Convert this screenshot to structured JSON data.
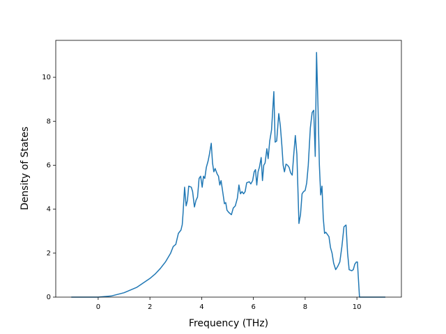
{
  "chart_data": {
    "type": "line",
    "xlabel": "Frequency (THz)",
    "ylabel": "Density of States",
    "x": [
      -1.04,
      -0.5,
      0,
      0.5,
      1.0,
      1.5,
      2.0,
      2.2,
      2.4,
      2.6,
      2.8,
      2.9,
      3.0,
      3.1,
      3.2,
      3.25,
      3.28,
      3.34,
      3.4,
      3.45,
      3.5,
      3.6,
      3.65,
      3.72,
      3.78,
      3.84,
      3.9,
      3.96,
      4.02,
      4.07,
      4.12,
      4.18,
      4.25,
      4.3,
      4.37,
      4.42,
      4.47,
      4.52,
      4.6,
      4.65,
      4.7,
      4.75,
      4.8,
      4.88,
      4.93,
      4.98,
      5.05,
      5.15,
      5.22,
      5.3,
      5.38,
      5.44,
      5.5,
      5.56,
      5.62,
      5.68,
      5.74,
      5.84,
      5.9,
      5.97,
      6.03,
      6.08,
      6.13,
      6.18,
      6.23,
      6.3,
      6.35,
      6.4,
      6.45,
      6.52,
      6.57,
      6.63,
      6.7,
      6.79,
      6.84,
      6.9,
      6.98,
      7.04,
      7.1,
      7.15,
      7.2,
      7.26,
      7.32,
      7.38,
      7.44,
      7.5,
      7.56,
      7.62,
      7.68,
      7.76,
      7.82,
      7.88,
      7.94,
      8.0,
      8.06,
      8.12,
      8.2,
      8.27,
      8.33,
      8.39,
      8.44,
      8.5,
      8.55,
      8.6,
      8.65,
      8.7,
      8.75,
      8.8,
      8.86,
      8.92,
      8.98,
      9.04,
      9.1,
      9.18,
      9.26,
      9.34,
      9.42,
      9.5,
      9.58,
      9.64,
      9.7,
      9.8,
      9.86,
      9.92,
      9.98,
      10.02,
      10.1,
      11.1
    ],
    "values": [
      0,
      0,
      0,
      0.05,
      0.2,
      0.45,
      0.85,
      1.05,
      1.3,
      1.6,
      2.0,
      2.3,
      2.4,
      2.9,
      3.05,
      3.3,
      3.8,
      5.0,
      4.15,
      4.4,
      5.05,
      5.0,
      4.8,
      4.1,
      4.4,
      4.55,
      5.4,
      5.5,
      5.0,
      5.5,
      5.4,
      5.9,
      6.2,
      6.5,
      7.0,
      6.1,
      5.7,
      5.85,
      5.6,
      5.5,
      5.1,
      5.3,
      4.9,
      4.25,
      4.3,
      3.95,
      3.85,
      3.75,
      4.05,
      4.15,
      4.5,
      5.1,
      4.7,
      4.8,
      4.7,
      4.8,
      5.2,
      5.25,
      5.15,
      5.3,
      5.7,
      5.8,
      5.1,
      5.7,
      5.9,
      6.35,
      5.3,
      6.0,
      6.1,
      6.75,
      6.3,
      7.1,
      7.6,
      9.35,
      7.05,
      7.1,
      8.35,
      7.8,
      6.9,
      6.0,
      5.7,
      6.05,
      6.0,
      5.9,
      5.65,
      5.55,
      6.5,
      7.35,
      6.5,
      3.35,
      3.75,
      4.7,
      4.8,
      4.85,
      5.2,
      6.0,
      7.7,
      8.4,
      8.5,
      6.4,
      11.13,
      8.5,
      6.0,
      4.65,
      5.05,
      3.6,
      2.9,
      2.95,
      2.85,
      2.75,
      2.25,
      2.0,
      1.55,
      1.25,
      1.4,
      1.6,
      2.3,
      3.2,
      3.28,
      2.0,
      1.25,
      1.2,
      1.25,
      1.5,
      1.6,
      1.6,
      0,
      0
    ],
    "color": "#1f77b4",
    "xlim": [
      -1.64,
      11.72
    ],
    "xticks": [
      0,
      2,
      4,
      6,
      8,
      10
    ],
    "ylim": [
      0,
      11.68
    ],
    "yticks": [
      0,
      2,
      4,
      6,
      8,
      10
    ],
    "grid": false
  }
}
